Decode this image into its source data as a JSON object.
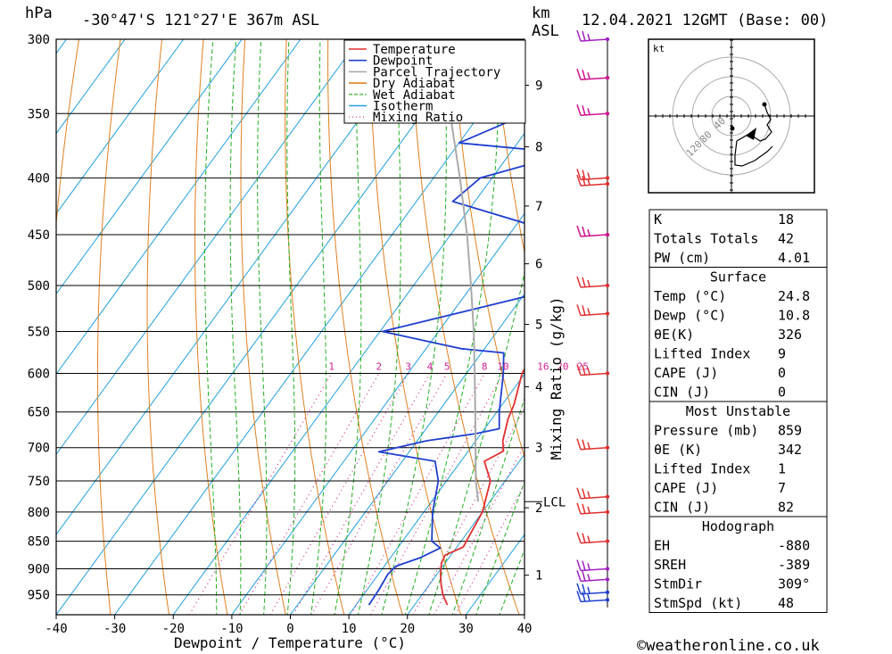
{
  "header": {
    "location": "-30°47'S  121°27'E  367m  ASL",
    "datetime": "12.04.2021  12GMT  (Base: 00)",
    "left_unit": "hPa",
    "km_unit": "km",
    "asl_unit": "ASL"
  },
  "chart_data": {
    "type": "line",
    "chart_kind": "skew-T log-P sounding",
    "xlabel": "Dewpoint / Temperature (°C)",
    "ylabel": "hPa",
    "xlim": [
      -40,
      40
    ],
    "ylim": [
      990,
      300
    ],
    "x_ticks": [
      "-40",
      "-30",
      "-20",
      "-10",
      "0",
      "10",
      "20",
      "30",
      "40"
    ],
    "pressure_ticks": [
      {
        "p": 300,
        "label": "300"
      },
      {
        "p": 350,
        "label": "350"
      },
      {
        "p": 400,
        "label": "400"
      },
      {
        "p": 450,
        "label": "450"
      },
      {
        "p": 500,
        "label": "500"
      },
      {
        "p": 550,
        "label": "550"
      },
      {
        "p": 600,
        "label": "600"
      },
      {
        "p": 650,
        "label": "650"
      },
      {
        "p": 700,
        "label": "700"
      },
      {
        "p": 750,
        "label": "750"
      },
      {
        "p": 800,
        "label": "800"
      },
      {
        "p": 850,
        "label": "850"
      },
      {
        "p": 900,
        "label": "900"
      },
      {
        "p": 950,
        "label": "950"
      }
    ],
    "km_ticks": [
      {
        "p": 912,
        "label": "1"
      },
      {
        "p": 793,
        "label": "2"
      },
      {
        "p": 700,
        "label": "3"
      },
      {
        "p": 617,
        "label": "4"
      },
      {
        "p": 542,
        "label": "5"
      },
      {
        "p": 478,
        "label": "6"
      },
      {
        "p": 424,
        "label": "7"
      },
      {
        "p": 375,
        "label": "8"
      },
      {
        "p": 330,
        "label": "9"
      }
    ],
    "lcl": {
      "p": 783,
      "label": "LCL"
    },
    "mixing_ratio_axis_label": "Mixing Ratio (g/kg)",
    "mixing_ratio_labels": [
      "1",
      "2",
      "3",
      "4",
      "5",
      "8",
      "10",
      "16",
      "20",
      "25"
    ],
    "mixing_ratio_values": [
      1,
      2,
      3,
      4,
      5,
      8,
      10,
      16,
      20,
      25
    ],
    "isotherms": [
      -110,
      -100,
      -90,
      -80,
      -70,
      -60,
      -50,
      -40,
      -30,
      -20,
      -10,
      0,
      10,
      20,
      30,
      40
    ],
    "dry_adiabats_theta_c": [
      -40,
      -30,
      -20,
      -10,
      0,
      10,
      20,
      30,
      40,
      50,
      60,
      70,
      80,
      90,
      100,
      110,
      120,
      130,
      140,
      150,
      160
    ],
    "wet_adiabats_c": [
      -12,
      -8,
      -4,
      0,
      4,
      8,
      12,
      16,
      20,
      24,
      28,
      32,
      36
    ],
    "series": [
      {
        "name": "Temperature",
        "color": "#e03030",
        "points": [
          [
            970,
            25.6
          ],
          [
            950,
            23.6
          ],
          [
            930,
            22.0
          ],
          [
            910,
            20.6
          ],
          [
            890,
            19.4
          ],
          [
            875,
            19.0
          ],
          [
            860,
            21.1
          ],
          [
            850,
            20.9
          ],
          [
            800,
            20.0
          ],
          [
            750,
            17.5
          ],
          [
            720,
            14.0
          ],
          [
            705,
            16.0
          ],
          [
            690,
            14.6
          ],
          [
            660,
            12.8
          ],
          [
            640,
            12.0
          ],
          [
            600,
            9.5
          ],
          [
            580,
            9.0
          ],
          [
            575,
            10.0
          ],
          [
            560,
            12.2
          ],
          [
            550,
            12.2
          ],
          [
            500,
            5.4
          ],
          [
            480,
            3.8
          ],
          [
            460,
            2.6
          ],
          [
            445,
            1.6
          ],
          [
            430,
            2.4
          ],
          [
            400,
            -1.2
          ],
          [
            390,
            -3.0
          ],
          [
            370,
            -2.0
          ],
          [
            365,
            -1.6
          ]
        ]
      },
      {
        "name": "Dewpoint",
        "color": "#2040d0",
        "points": [
          [
            970,
            12.2
          ],
          [
            940,
            12.0
          ],
          [
            910,
            11.6
          ],
          [
            895,
            12.0
          ],
          [
            880,
            15.0
          ],
          [
            862,
            17.3
          ],
          [
            850,
            15.0
          ],
          [
            800,
            11.5
          ],
          [
            750,
            8.6
          ],
          [
            720,
            5.6
          ],
          [
            706,
            -5.2
          ],
          [
            690,
            1.6
          ],
          [
            680,
            9.0
          ],
          [
            673,
            12.5
          ],
          [
            650,
            10.4
          ],
          [
            600,
            6.3
          ],
          [
            575,
            3.8
          ],
          [
            570,
            -4.0
          ],
          [
            550,
            -19.6
          ],
          [
            500,
            6.9
          ],
          [
            450,
            1.0
          ],
          [
            443,
            -6.0
          ],
          [
            420,
            -23.8
          ],
          [
            400,
            -22.0
          ],
          [
            380,
            -10.0
          ],
          [
            372,
            -30.0
          ],
          [
            350,
            -22.0
          ],
          [
            322,
            -14.0
          ],
          [
            310,
            -0.3
          ],
          [
            305,
            0.5
          ],
          [
            300,
            1.0
          ]
        ]
      },
      {
        "name": "Parcel Trajectory",
        "color": "#aaaaaa",
        "points": [
          [
            783,
            18.0
          ],
          [
            750,
            15.0
          ],
          [
            700,
            10.8
          ],
          [
            650,
            6.3
          ],
          [
            600,
            1.4
          ],
          [
            550,
            -4.0
          ],
          [
            500,
            -10.2
          ],
          [
            450,
            -17.2
          ],
          [
            400,
            -25.5
          ],
          [
            350,
            -35.2
          ],
          [
            300,
            -46.8
          ]
        ]
      }
    ],
    "legend": [
      {
        "name": "Temperature",
        "color": "#e03030",
        "style": "solid"
      },
      {
        "name": "Dewpoint",
        "color": "#2040d0",
        "style": "solid"
      },
      {
        "name": "Parcel Trajectory",
        "color": "#aaaaaa",
        "style": "solid"
      },
      {
        "name": "Dry Adiabat",
        "color": "#e08020",
        "style": "solid"
      },
      {
        "name": "Wet Adiabat",
        "color": "#20b020",
        "style": "dashed"
      },
      {
        "name": "Isotherm",
        "color": "#20a0e0",
        "style": "solid"
      },
      {
        "name": "Mixing Ratio",
        "color": "#d02090",
        "style": "dotted"
      }
    ],
    "legend_position": "top-right",
    "wind_barbs": [
      {
        "p": 300,
        "color": "#a020c0"
      },
      {
        "p": 325,
        "color": "#d01090"
      },
      {
        "p": 350,
        "color": "#d01090"
      },
      {
        "p": 400,
        "color": "#e03030"
      },
      {
        "p": 405,
        "color": "#e03030"
      },
      {
        "p": 450,
        "color": "#d01090"
      },
      {
        "p": 500,
        "color": "#e03030"
      },
      {
        "p": 530,
        "color": "#e03030"
      },
      {
        "p": 600,
        "color": "#e03030"
      },
      {
        "p": 700,
        "color": "#e03030"
      },
      {
        "p": 775,
        "color": "#e03030"
      },
      {
        "p": 800,
        "color": "#e03030"
      },
      {
        "p": 850,
        "color": "#e03030"
      },
      {
        "p": 900,
        "color": "#a020c0"
      },
      {
        "p": 920,
        "color": "#a020c0"
      },
      {
        "p": 945,
        "color": "#2040d0"
      },
      {
        "p": 960,
        "color": "#2040d0"
      }
    ]
  },
  "hodograph": {
    "unit_label": "kt",
    "ring_labels": [
      "40",
      "80",
      "120"
    ],
    "ring_values": [
      40,
      80,
      120
    ]
  },
  "indices": {
    "general": [
      {
        "label": "K",
        "value": "18"
      },
      {
        "label": "Totals Totals",
        "value": "42"
      },
      {
        "label": "PW (cm)",
        "value": "4.01"
      }
    ],
    "surface_title": "Surface",
    "surface": [
      {
        "label": "Temp (°C)",
        "value": "24.8"
      },
      {
        "label": "Dewp (°C)",
        "value": "10.8"
      },
      {
        "label": "θE(K)",
        "value": "326"
      },
      {
        "label": "Lifted Index",
        "value": "9"
      },
      {
        "label": "CAPE (J)",
        "value": "0"
      },
      {
        "label": "CIN (J)",
        "value": "0"
      }
    ],
    "most_unstable_title": "Most Unstable",
    "most_unstable": [
      {
        "label": "Pressure (mb)",
        "value": "859"
      },
      {
        "label": "θE (K)",
        "value": "342"
      },
      {
        "label": "Lifted Index",
        "value": "1"
      },
      {
        "label": "CAPE (J)",
        "value": "7"
      },
      {
        "label": "CIN (J)",
        "value": "82"
      }
    ],
    "hodograph_title": "Hodograph",
    "hodograph": [
      {
        "label": "EH",
        "value": "-880"
      },
      {
        "label": "SREH",
        "value": "-389"
      },
      {
        "label": "StmDir",
        "value": "309°"
      },
      {
        "label": "StmSpd (kt)",
        "value": "48"
      }
    ]
  },
  "footer": {
    "copyright": "©weatheronline.co.uk"
  }
}
